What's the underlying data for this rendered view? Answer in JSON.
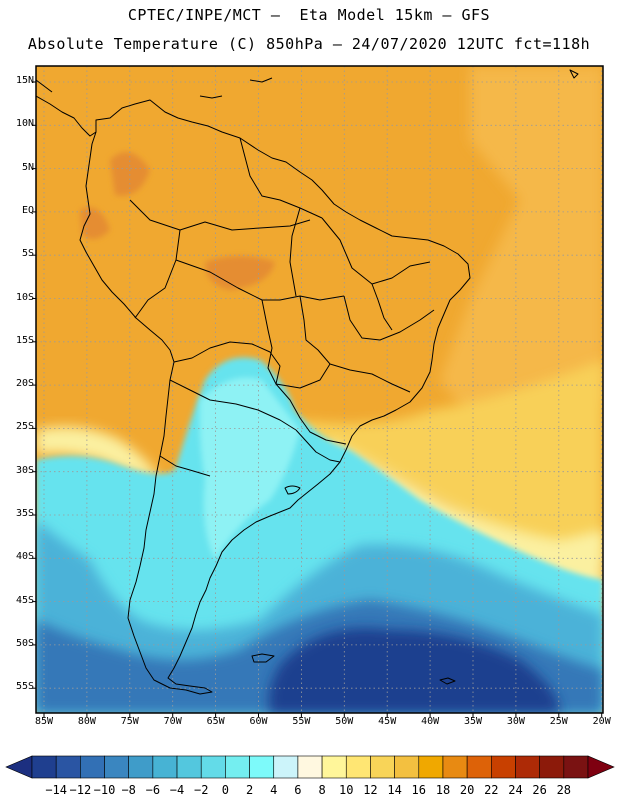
{
  "titles": {
    "line1": "CPTEC/INPE/MCT –  Eta Model 15km – GFS",
    "line2": "Absolute Temperature (C) 850hPa – 24/07/2020 12UTC fct=118h"
  },
  "map": {
    "region": "South America",
    "lat_labels": [
      "15N",
      "10N",
      "5N",
      "EQ",
      "5S",
      "10S",
      "15S",
      "20S",
      "25S",
      "30S",
      "35S",
      "40S",
      "45S",
      "50S",
      "55S"
    ],
    "lon_labels": [
      "85W",
      "80W",
      "75W",
      "70W",
      "65W",
      "60W",
      "55W",
      "50W",
      "45W",
      "40W",
      "35W",
      "30W",
      "25W",
      "20W"
    ]
  },
  "colorbar": {
    "labels": [
      "-14",
      "-12",
      "-10",
      "-8",
      "-6",
      "-4",
      "-2",
      "0",
      "2",
      "4",
      "6",
      "8",
      "10",
      "12",
      "14",
      "16",
      "18",
      "20",
      "22",
      "24",
      "26",
      "28"
    ],
    "colors": [
      "#1f3f8f",
      "#2a55a3",
      "#3270b5",
      "#3a86c0",
      "#3f9cc9",
      "#47b3d4",
      "#53c7de",
      "#63dbe8",
      "#74eef0",
      "#7dfafa",
      "#ccf4fa",
      "#fff8e0",
      "#fff69a",
      "#ffe673",
      "#f8d458",
      "#f3c040",
      "#f0a800",
      "#e88a12",
      "#dd6208",
      "#c84000",
      "#ad2a06",
      "#8c1a0a",
      "#7a1212"
    ],
    "min_color": "#1c2f80",
    "max_color": "#7e0010"
  },
  "palette": {
    "orange": "#f0a830",
    "orange_dark": "#e58d30",
    "orange_light": "#f5b848",
    "yellow": "#f8d058",
    "pale_yellow": "#fbf0a0",
    "cyan": "#66e3ee",
    "cyan_light": "#8ef2f4",
    "blue_mid": "#4cb2d8",
    "blue": "#3478b8",
    "blue_dark": "#1f3f8f"
  }
}
